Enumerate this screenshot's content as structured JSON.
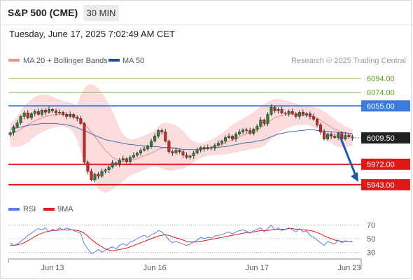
{
  "header": {
    "instrument": "S&P 500 (CME)",
    "interval": "30 MIN",
    "timestamp": "Tuesday, June 17, 2025 7:02:49 AM CET"
  },
  "legend": {
    "ma20_label": "MA 20 + Bollinger Bands",
    "ma50_label": "MA 50",
    "ma20_color": "#f08c8c",
    "ma50_color": "#1f4e9a",
    "rsi_label": "RSI",
    "ma9_label": "9MA",
    "rsi_color": "#5b80e6",
    "ma9_color": "#d91c1c"
  },
  "attribution": "Research © 2025 Trading Central",
  "chart_data": [
    {
      "type": "candlestick",
      "name": "price",
      "ylim": [
        5925,
        6110
      ],
      "current_price": 6009.5,
      "levels": [
        {
          "label": "6094.00",
          "value": 6094.0,
          "kind": "target",
          "color": "#8fc24a"
        },
        {
          "label": "6074.00",
          "value": 6074.0,
          "kind": "target",
          "color": "#8fc24a"
        },
        {
          "label": "6055.00",
          "value": 6055.0,
          "kind": "pivot",
          "color": "#3a7be0"
        },
        {
          "label": "5972.00",
          "value": 5972.0,
          "kind": "support",
          "color": "#e01818"
        },
        {
          "label": "5943.00",
          "value": 5943.0,
          "kind": "support",
          "color": "#e01818"
        }
      ],
      "current_label": "6009.50",
      "forecast": {
        "from": 6011,
        "to": 5947,
        "direction": "down"
      },
      "x_ticks": [
        {
          "label": "Jun 13",
          "index": 12
        },
        {
          "label": "Jun 16",
          "index": 41
        },
        {
          "label": "Jun 17",
          "index": 70
        },
        {
          "label": "Jun 23",
          "index": 82
        }
      ],
      "closes": [
        6017,
        6025,
        6031,
        6040,
        6045,
        6038,
        6044,
        6047,
        6043,
        6049,
        6046,
        6050,
        6048,
        6045,
        6046,
        6043,
        6040,
        6043,
        6039,
        6037,
        6030,
        5975,
        5962,
        5950,
        5958,
        5955,
        5962,
        5964,
        5968,
        5974,
        5972,
        5978,
        5980,
        5976,
        5982,
        5985,
        5988,
        5992,
        5994,
        5998,
        6005,
        6012,
        6020,
        6018,
        6005,
        5990,
        5988,
        5992,
        5990,
        5985,
        5982,
        5984,
        5988,
        5992,
        5996,
        5994,
        5996,
        5995,
        5999,
        6002,
        6005,
        6010,
        6012,
        6008,
        6015,
        6018,
        6021,
        6020,
        6016,
        6022,
        6026,
        6035,
        6030,
        6043,
        6053,
        6048,
        6050,
        6045,
        6044,
        6047,
        6044,
        6040,
        6046,
        6042,
        6044,
        6040,
        6036,
        6028,
        6018,
        6008,
        6015,
        6012,
        6010,
        6016,
        6008,
        6013,
        6011,
        6009.5
      ],
      "ma20": [
        6015,
        6017,
        6019,
        6022,
        6025,
        6028,
        6031,
        6034,
        6036,
        6038,
        6040,
        6041,
        6042,
        6043,
        6043,
        6043,
        6042,
        6041,
        6040,
        6038,
        6035,
        6030,
        6024,
        6018,
        6012,
        6005,
        5998,
        5992,
        5987,
        5982,
        5979,
        5977,
        5976,
        5976,
        5977,
        5979,
        5980,
        5982,
        5984,
        5986,
        5988,
        5990,
        5993,
        5995,
        5996,
        5996,
        5996,
        5995,
        5994,
        5993,
        5993,
        5993,
        5993,
        5993,
        5993,
        5994,
        5995,
        5996,
        5997,
        5999,
        6001,
        6003,
        6005,
        6007,
        6009,
        6011,
        6013,
        6015,
        6017,
        6019,
        6021,
        6024,
        6027,
        6031,
        6035,
        6038,
        6040,
        6041,
        6042,
        6043,
        6043,
        6043,
        6043,
        6042,
        6042,
        6041,
        6040,
        6038,
        6035,
        6031,
        6028,
        6025,
        6022,
        6020,
        6018,
        6016,
        6014,
        6013
      ],
      "bb_upper": [
        6030,
        6034,
        6040,
        6048,
        6055,
        6060,
        6064,
        6068,
        6070,
        6071,
        6071,
        6070,
        6068,
        6066,
        6064,
        6062,
        6061,
        6060,
        6058,
        6056,
        6070,
        6080,
        6085,
        6086,
        6084,
        6080,
        6074,
        6066,
        6058,
        6048,
        6036,
        6024,
        6015,
        6010,
        6008,
        6008,
        6009,
        6011,
        6013,
        6015,
        6017,
        6021,
        6026,
        6030,
        6031,
        6030,
        6029,
        6027,
        6024,
        6020,
        6014,
        6008,
        6005,
        6003,
        6002,
        6003,
        6005,
        6007,
        6010,
        6013,
        6016,
        6020,
        6024,
        6028,
        6031,
        6034,
        6037,
        6040,
        6043,
        6046,
        6050,
        6054,
        6058,
        6061,
        6063,
        6065,
        6065,
        6064,
        6063,
        6062,
        6060,
        6058,
        6057,
        6056,
        6055,
        6054,
        6053,
        6052,
        6050,
        6047,
        6044,
        6040,
        6036,
        6032,
        6029,
        6026,
        6024,
        6022
      ],
      "bb_lower": [
        5996,
        5997,
        5997,
        5998,
        6000,
        6003,
        6007,
        6011,
        6015,
        6018,
        6020,
        6022,
        6024,
        6025,
        6026,
        6026,
        6025,
        6022,
        6016,
        6006,
        5990,
        5975,
        5960,
        5950,
        5943,
        5937,
        5933,
        5932,
        5933,
        5936,
        5940,
        5944,
        5948,
        5952,
        5956,
        5958,
        5960,
        5962,
        5964,
        5966,
        5968,
        5969,
        5968,
        5966,
        5964,
        5963,
        5963,
        5964,
        5965,
        5966,
        5968,
        5971,
        5975,
        5978,
        5981,
        5983,
        5984,
        5985,
        5985,
        5985,
        5986,
        5986,
        5987,
        5988,
        5989,
        5990,
        5991,
        5992,
        5993,
        5994,
        5995,
        5996,
        5998,
        6003,
        6008,
        6012,
        6016,
        6020,
        6022,
        6024,
        6026,
        6027,
        6028,
        6028,
        6028,
        6027,
        6025,
        6022,
        6018,
        6012,
        6007,
        6002,
        5999,
        5997,
        5996,
        5996,
        5997,
        5998
      ],
      "ma50": [
        6022,
        6023,
        6024,
        6025,
        6026,
        6027,
        6028,
        6029,
        6029,
        6030,
        6030,
        6030,
        6030,
        6030,
        6029,
        6029,
        6028,
        6027,
        6026,
        6024,
        6022,
        6020,
        6018,
        6015,
        6013,
        6011,
        6009,
        6007,
        6006,
        6005,
        6004,
        6003,
        6002,
        6001,
        6000,
        6000,
        5999,
        5999,
        5998,
        5998,
        5997,
        5997,
        5997,
        5996,
        5996,
        5995,
        5995,
        5994,
        5994,
        5993,
        5993,
        5993,
        5993,
        5993,
        5994,
        5994,
        5995,
        5995,
        5996,
        5996,
        5997,
        5997,
        5998,
        5999,
        6000,
        6001,
        6002,
        6003,
        6003,
        6004,
        6005,
        6006,
        6007,
        6009,
        6011,
        6013,
        6015,
        6016,
        6017,
        6018,
        6019,
        6019,
        6020,
        6020,
        6021,
        6021,
        6021,
        6020,
        6020,
        6019,
        6019,
        6018,
        6018,
        6017,
        6017,
        6017,
        6016,
        6016
      ]
    },
    {
      "type": "line",
      "name": "RSI",
      "ylim": [
        20,
        80
      ],
      "y_ticks": [
        70,
        50,
        30
      ],
      "series": [
        {
          "name": "RSI",
          "values": [
            44,
            40,
            42,
            46,
            50,
            55,
            58,
            62,
            65,
            63,
            66,
            60,
            64,
            62,
            66,
            63,
            66,
            64,
            62,
            60,
            58,
            42,
            35,
            28,
            30,
            34,
            30,
            33,
            36,
            38,
            35,
            40,
            43,
            40,
            45,
            47,
            50,
            53,
            55,
            52,
            56,
            58,
            62,
            60,
            55,
            48,
            44,
            46,
            44,
            42,
            40,
            42,
            45,
            48,
            52,
            50,
            52,
            51,
            54,
            55,
            56,
            58,
            60,
            57,
            60,
            62,
            63,
            61,
            58,
            62,
            64,
            66,
            60,
            65,
            70,
            63,
            66,
            62,
            64,
            66,
            63,
            60,
            65,
            60,
            62,
            55,
            52,
            48,
            44,
            40,
            46,
            44,
            42,
            48,
            44,
            47,
            46,
            45
          ]
        },
        {
          "name": "9MA",
          "values": [
            40,
            40,
            41,
            42,
            44,
            47,
            50,
            53,
            56,
            58,
            60,
            61,
            62,
            62,
            63,
            63,
            63,
            63,
            63,
            62,
            61,
            58,
            54,
            49,
            45,
            41,
            38,
            35,
            33,
            32,
            33,
            34,
            35,
            36,
            38,
            40,
            42,
            44,
            46,
            48,
            50,
            52,
            54,
            55,
            56,
            55,
            53,
            51,
            50,
            48,
            46,
            45,
            45,
            45,
            46,
            47,
            48,
            49,
            50,
            51,
            52,
            53,
            54,
            55,
            56,
            57,
            58,
            59,
            59,
            60,
            61,
            62,
            62,
            62,
            63,
            64,
            64,
            64,
            64,
            65,
            65,
            64,
            64,
            63,
            63,
            62,
            61,
            59,
            57,
            54,
            52,
            50,
            48,
            47,
            46,
            46,
            46,
            46
          ]
        }
      ]
    }
  ]
}
